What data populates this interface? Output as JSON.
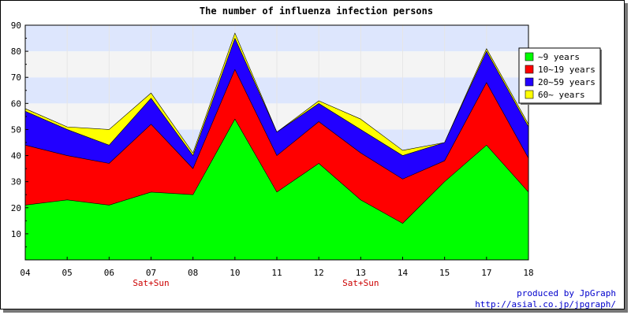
{
  "chart_data": {
    "type": "area",
    "stacked": true,
    "title": "The number of influenza infection persons",
    "categories": [
      "04",
      "05",
      "06",
      "07",
      "08",
      "10",
      "11",
      "12",
      "13",
      "14",
      "15",
      "17",
      "18"
    ],
    "annotations": [
      {
        "category": "07",
        "text": "Sat+Sun"
      },
      {
        "category": "13",
        "text": "Sat+Sun"
      }
    ],
    "ylim": [
      0,
      90
    ],
    "yticks": [
      10,
      20,
      30,
      40,
      50,
      60,
      70,
      80,
      90
    ],
    "grid": "horizontal-bands",
    "legend_position": "top-right",
    "series": [
      {
        "name": "~9 years",
        "color": "#00ff00",
        "values": [
          21,
          23,
          21,
          26,
          25,
          54,
          26,
          37,
          23,
          14,
          30,
          44,
          26
        ]
      },
      {
        "name": "10~19 years",
        "color": "#ff0000",
        "values": [
          23,
          17,
          16,
          26,
          10,
          19,
          14,
          16,
          18,
          17,
          8,
          24,
          13
        ]
      },
      {
        "name": "20~59 years",
        "color": "#2200ff",
        "values": [
          13,
          10,
          7,
          10,
          5,
          12,
          9,
          7,
          9,
          9,
          7,
          12,
          12
        ]
      },
      {
        "name": "60~ years",
        "color": "#ffff00",
        "values": [
          1,
          1,
          6,
          2,
          1,
          2,
          0,
          1,
          4,
          2,
          0,
          1,
          1
        ]
      }
    ]
  },
  "credit": {
    "line1": "produced by JpGraph",
    "line2": "http://asial.co.jp/jpgraph/"
  }
}
